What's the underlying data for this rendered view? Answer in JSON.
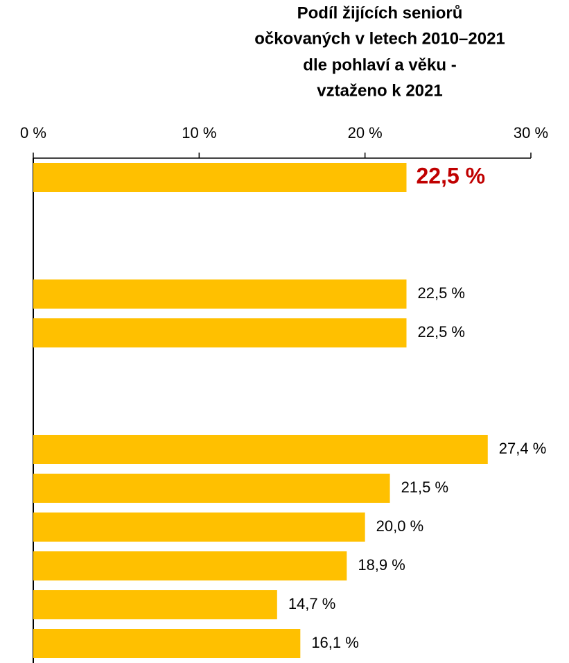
{
  "chart_data": {
    "type": "barh",
    "title": [
      "Podíl žijících seniorů",
      "očkovaných v letech 2010–2021",
      "dle pohlaví a věku -",
      "vztaženo k 2021"
    ],
    "categories": [
      null,
      null,
      null,
      null,
      null,
      null,
      null,
      null,
      null,
      null,
      null,
      null,
      null
    ],
    "values": [
      22.5,
      null,
      null,
      22.5,
      22.5,
      null,
      null,
      27.4,
      21.5,
      20.0,
      18.9,
      14.7,
      16.1
    ],
    "value_labels": [
      "22,5 %",
      null,
      null,
      "22,5 %",
      "22,5 %",
      null,
      null,
      "27,4 %",
      "21,5 %",
      "20,0 %",
      "18,9 %",
      "14,7 %",
      "16,1 %"
    ],
    "color": "#ffc000",
    "highlight": {
      "index": 0,
      "color": "#c00000"
    },
    "xlim": [
      0,
      30
    ],
    "xticks": [
      {
        "value": 0,
        "label": "0 %"
      },
      {
        "value": 10,
        "label": "10 %"
      },
      {
        "value": 20,
        "label": "20 %"
      },
      {
        "value": 30,
        "label": "30 %"
      }
    ]
  }
}
